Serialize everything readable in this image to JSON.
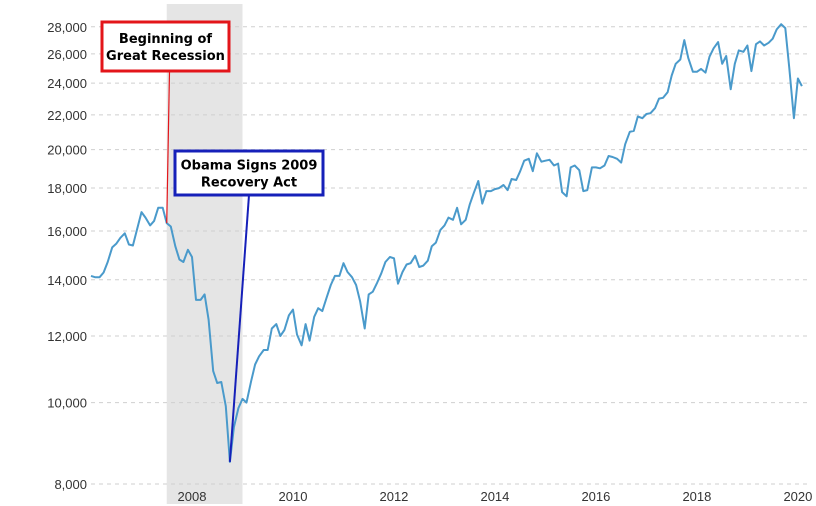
{
  "chart_data": {
    "type": "line",
    "title": "",
    "xlabel": "",
    "ylabel": "",
    "y_scale": "log",
    "ylim": [
      8000,
      29000
    ],
    "xlim": [
      2006.0,
      2020.2
    ],
    "grid": true,
    "x_ticks": [
      {
        "value": 2008,
        "label": "2008"
      },
      {
        "value": 2010,
        "label": "2010"
      },
      {
        "value": 2012,
        "label": "2012"
      },
      {
        "value": 2014,
        "label": "2014"
      },
      {
        "value": 2016,
        "label": "2016"
      },
      {
        "value": 2018,
        "label": "2018"
      },
      {
        "value": 2020,
        "label": "2020"
      }
    ],
    "y_ticks": [
      {
        "value": 8000,
        "label": "8,000"
      },
      {
        "value": 10000,
        "label": "10,000"
      },
      {
        "value": 12000,
        "label": "12,000"
      },
      {
        "value": 14000,
        "label": "14,000"
      },
      {
        "value": 16000,
        "label": "16,000"
      },
      {
        "value": 18000,
        "label": "18,000"
      },
      {
        "value": 20000,
        "label": "20,000"
      },
      {
        "value": 22000,
        "label": "22,000"
      },
      {
        "value": 24000,
        "label": "24,000"
      },
      {
        "value": 26000,
        "label": "26,000"
      },
      {
        "value": 28000,
        "label": "28,000"
      }
    ],
    "recession_band": {
      "start": 2007.5,
      "end": 2009.0,
      "color": "#e5e5e5"
    },
    "series": [
      {
        "color": "#4a9acb",
        "points": [
          [
            2006.0,
            14150
          ],
          [
            2006.08,
            14100
          ],
          [
            2006.17,
            14100
          ],
          [
            2006.25,
            14280
          ],
          [
            2006.33,
            14700
          ],
          [
            2006.42,
            15300
          ],
          [
            2006.5,
            15450
          ],
          [
            2006.58,
            15700
          ],
          [
            2006.67,
            15900
          ],
          [
            2006.75,
            15420
          ],
          [
            2006.83,
            15380
          ],
          [
            2006.92,
            16150
          ],
          [
            2007.0,
            16850
          ],
          [
            2007.08,
            16600
          ],
          [
            2007.17,
            16250
          ],
          [
            2007.25,
            16450
          ],
          [
            2007.33,
            17050
          ],
          [
            2007.42,
            17050
          ],
          [
            2007.5,
            16350
          ],
          [
            2007.58,
            16200
          ],
          [
            2007.67,
            15350
          ],
          [
            2007.75,
            14800
          ],
          [
            2007.83,
            14700
          ],
          [
            2007.92,
            15200
          ],
          [
            2008.0,
            14900
          ],
          [
            2008.08,
            13250
          ],
          [
            2008.17,
            13250
          ],
          [
            2008.25,
            13450
          ],
          [
            2008.33,
            12550
          ],
          [
            2008.42,
            10900
          ],
          [
            2008.5,
            10550
          ],
          [
            2008.58,
            10580
          ],
          [
            2008.67,
            9900
          ],
          [
            2008.75,
            8500
          ],
          [
            2008.83,
            9350
          ],
          [
            2008.92,
            9850
          ],
          [
            2009.0,
            10100
          ],
          [
            2009.08,
            10000
          ],
          [
            2009.17,
            10600
          ],
          [
            2009.25,
            11100
          ],
          [
            2009.33,
            11350
          ],
          [
            2009.42,
            11550
          ],
          [
            2009.5,
            11550
          ],
          [
            2009.58,
            12250
          ],
          [
            2009.67,
            12400
          ],
          [
            2009.75,
            12000
          ],
          [
            2009.83,
            12200
          ],
          [
            2009.92,
            12700
          ],
          [
            2010.0,
            12900
          ],
          [
            2010.08,
            12050
          ],
          [
            2010.17,
            11700
          ],
          [
            2010.25,
            12400
          ],
          [
            2010.33,
            11850
          ],
          [
            2010.42,
            12650
          ],
          [
            2010.5,
            12950
          ],
          [
            2010.58,
            12850
          ],
          [
            2010.67,
            13350
          ],
          [
            2010.75,
            13800
          ],
          [
            2010.83,
            14150
          ],
          [
            2010.92,
            14150
          ],
          [
            2011.0,
            14650
          ],
          [
            2011.08,
            14300
          ],
          [
            2011.17,
            14100
          ],
          [
            2011.25,
            13800
          ],
          [
            2011.33,
            13200
          ],
          [
            2011.42,
            12250
          ],
          [
            2011.5,
            13450
          ],
          [
            2011.58,
            13550
          ],
          [
            2011.67,
            13900
          ],
          [
            2011.75,
            14250
          ],
          [
            2011.83,
            14700
          ],
          [
            2011.92,
            14900
          ],
          [
            2012.0,
            14850
          ],
          [
            2012.08,
            13850
          ],
          [
            2012.17,
            14300
          ],
          [
            2012.25,
            14600
          ],
          [
            2012.33,
            14650
          ],
          [
            2012.42,
            14950
          ],
          [
            2012.5,
            14500
          ],
          [
            2012.58,
            14550
          ],
          [
            2012.67,
            14750
          ],
          [
            2012.75,
            15350
          ],
          [
            2012.83,
            15500
          ],
          [
            2012.92,
            16050
          ],
          [
            2013.0,
            16250
          ],
          [
            2013.08,
            16600
          ],
          [
            2013.17,
            16500
          ],
          [
            2013.25,
            17050
          ],
          [
            2013.33,
            16300
          ],
          [
            2013.42,
            16500
          ],
          [
            2013.5,
            17200
          ],
          [
            2013.58,
            17750
          ],
          [
            2013.67,
            18350
          ],
          [
            2013.75,
            17250
          ],
          [
            2013.83,
            17850
          ],
          [
            2013.92,
            17850
          ],
          [
            2014.0,
            17950
          ],
          [
            2014.08,
            18000
          ],
          [
            2014.17,
            18150
          ],
          [
            2014.25,
            17900
          ],
          [
            2014.33,
            18450
          ],
          [
            2014.42,
            18400
          ],
          [
            2014.5,
            18850
          ],
          [
            2014.58,
            19400
          ],
          [
            2014.67,
            19500
          ],
          [
            2014.75,
            18850
          ],
          [
            2014.83,
            19800
          ],
          [
            2014.92,
            19350
          ],
          [
            2015.0,
            19400
          ],
          [
            2015.08,
            19450
          ],
          [
            2015.17,
            19150
          ],
          [
            2015.25,
            19250
          ],
          [
            2015.33,
            17800
          ],
          [
            2015.42,
            17600
          ],
          [
            2015.5,
            19050
          ],
          [
            2015.58,
            19150
          ],
          [
            2015.67,
            18900
          ],
          [
            2015.75,
            17850
          ],
          [
            2015.83,
            17900
          ],
          [
            2015.92,
            19050
          ],
          [
            2016.0,
            19050
          ],
          [
            2016.08,
            19000
          ],
          [
            2016.17,
            19150
          ],
          [
            2016.25,
            19650
          ],
          [
            2016.33,
            19600
          ],
          [
            2016.42,
            19500
          ],
          [
            2016.5,
            19300
          ],
          [
            2016.58,
            20300
          ],
          [
            2016.67,
            21000
          ],
          [
            2016.75,
            21050
          ],
          [
            2016.83,
            21900
          ],
          [
            2016.92,
            21800
          ],
          [
            2017.0,
            22050
          ],
          [
            2017.08,
            22100
          ],
          [
            2017.17,
            22400
          ],
          [
            2017.25,
            23000
          ],
          [
            2017.33,
            23050
          ],
          [
            2017.42,
            23400
          ],
          [
            2017.5,
            24500
          ],
          [
            2017.58,
            25300
          ],
          [
            2017.67,
            25600
          ],
          [
            2017.75,
            27000
          ],
          [
            2017.83,
            25700
          ],
          [
            2017.92,
            24750
          ],
          [
            2018.0,
            24750
          ],
          [
            2018.08,
            24950
          ],
          [
            2018.17,
            24700
          ],
          [
            2018.25,
            25800
          ],
          [
            2018.33,
            26400
          ],
          [
            2018.42,
            26850
          ],
          [
            2018.5,
            25300
          ],
          [
            2018.58,
            25850
          ],
          [
            2018.67,
            23600
          ],
          [
            2018.75,
            25300
          ],
          [
            2018.83,
            26250
          ],
          [
            2018.92,
            26150
          ],
          [
            2019.0,
            26600
          ],
          [
            2019.08,
            24800
          ],
          [
            2019.17,
            26700
          ],
          [
            2019.25,
            26900
          ],
          [
            2019.33,
            26600
          ],
          [
            2019.42,
            26800
          ],
          [
            2019.5,
            27100
          ],
          [
            2019.58,
            27800
          ],
          [
            2019.67,
            28200
          ],
          [
            2019.75,
            27900
          ],
          [
            2019.83,
            25000
          ],
          [
            2019.92,
            21800
          ],
          [
            2020.0,
            24300
          ],
          [
            2020.08,
            23800
          ]
        ]
      }
    ],
    "annotations": [
      {
        "text_lines": [
          "Beginning of",
          "Great Recession"
        ],
        "color": "#e3151a",
        "target": [
          2007.5,
          16350
        ],
        "box": {
          "x": 102,
          "y": 22,
          "w": 127,
          "h": 49
        }
      },
      {
        "text_lines": [
          "Obama Signs 2009",
          "Recovery Act"
        ],
        "color": "#1620b9",
        "target": [
          2008.75,
          8500
        ],
        "box": {
          "x": 175,
          "y": 151,
          "w": 148,
          "h": 44
        }
      }
    ]
  }
}
